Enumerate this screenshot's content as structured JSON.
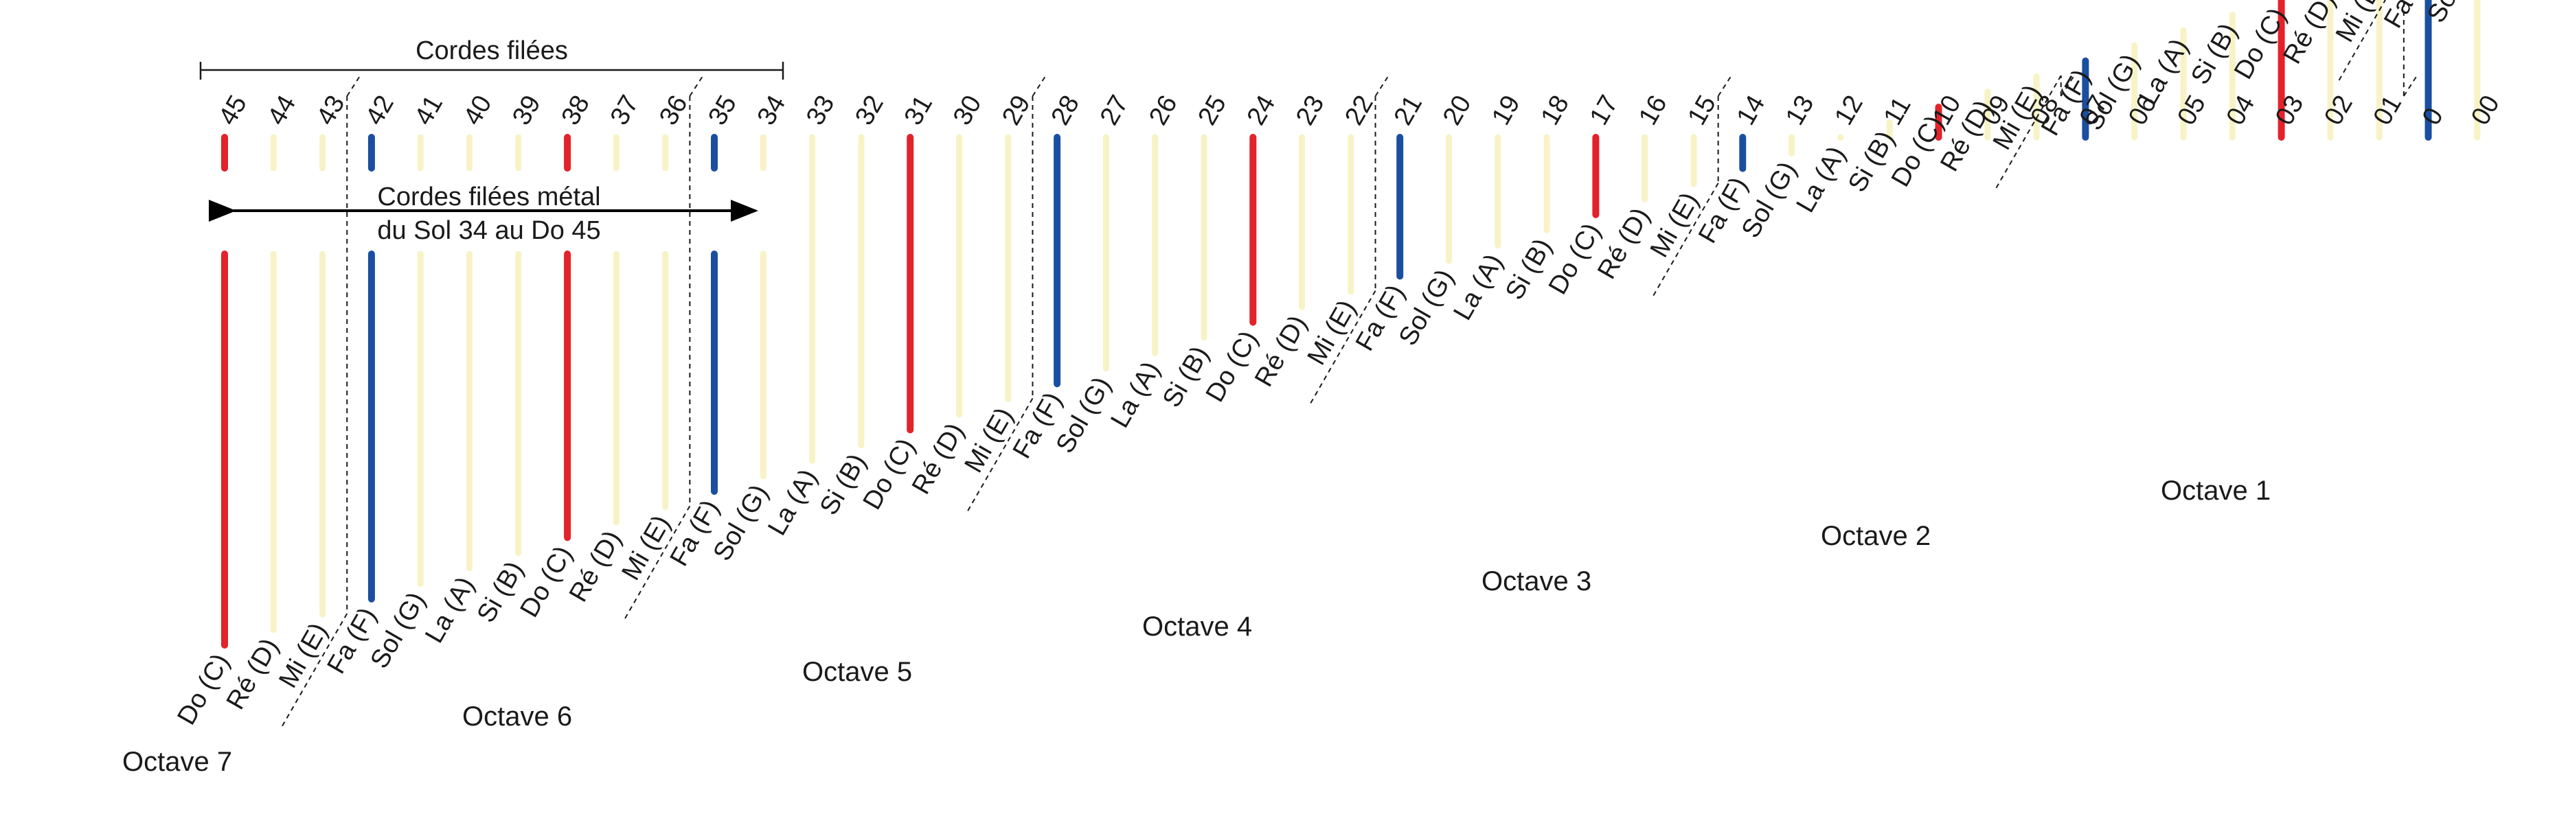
{
  "header": {
    "bracket_label": "Cordes filées"
  },
  "arrow": {
    "line1": "Cordes filées métal",
    "line2": "du Sol 34 au Do 45"
  },
  "colors": {
    "do": "#e3222b",
    "fa": "#1a4fa0",
    "other": "#f7f3c6",
    "ink": "#1a1a1a"
  },
  "strings": [
    {
      "number": "45",
      "note": "Do (C)",
      "kind": "do"
    },
    {
      "number": "44",
      "note": "Ré (D)",
      "kind": "other"
    },
    {
      "number": "43",
      "note": "Mi (E)",
      "kind": "other"
    },
    {
      "number": "42",
      "note": "Fa (F)",
      "kind": "fa"
    },
    {
      "number": "41",
      "note": "Sol (G)",
      "kind": "other"
    },
    {
      "number": "40",
      "note": "La (A)",
      "kind": "other"
    },
    {
      "number": "39",
      "note": "Si (B)",
      "kind": "other"
    },
    {
      "number": "38",
      "note": "Do (C)",
      "kind": "do"
    },
    {
      "number": "37",
      "note": "Ré (D)",
      "kind": "other"
    },
    {
      "number": "36",
      "note": "Mi (E)",
      "kind": "other"
    },
    {
      "number": "35",
      "note": "Fa (F)",
      "kind": "fa"
    },
    {
      "number": "34",
      "note": "Sol (G)",
      "kind": "other"
    },
    {
      "number": "33",
      "note": "La (A)",
      "kind": "other"
    },
    {
      "number": "32",
      "note": "Si (B)",
      "kind": "other"
    },
    {
      "number": "31",
      "note": "Do (C)",
      "kind": "do"
    },
    {
      "number": "30",
      "note": "Ré (D)",
      "kind": "other"
    },
    {
      "number": "29",
      "note": "Mi (E)",
      "kind": "other"
    },
    {
      "number": "28",
      "note": "Fa (F)",
      "kind": "fa"
    },
    {
      "number": "27",
      "note": "Sol (G)",
      "kind": "other"
    },
    {
      "number": "26",
      "note": "La (A)",
      "kind": "other"
    },
    {
      "number": "25",
      "note": "Si (B)",
      "kind": "other"
    },
    {
      "number": "24",
      "note": "Do (C)",
      "kind": "do"
    },
    {
      "number": "23",
      "note": "Ré (D)",
      "kind": "other"
    },
    {
      "number": "22",
      "note": "Mi (E)",
      "kind": "other"
    },
    {
      "number": "21",
      "note": "Fa (F)",
      "kind": "fa"
    },
    {
      "number": "20",
      "note": "Sol (G)",
      "kind": "other"
    },
    {
      "number": "19",
      "note": "La (A)",
      "kind": "other"
    },
    {
      "number": "18",
      "note": "Si (B)",
      "kind": "other"
    },
    {
      "number": "17",
      "note": "Do (C)",
      "kind": "do"
    },
    {
      "number": "16",
      "note": "Ré (D)",
      "kind": "other"
    },
    {
      "number": "15",
      "note": "Mi (E)",
      "kind": "other"
    },
    {
      "number": "14",
      "note": "Fa (F)",
      "kind": "fa"
    },
    {
      "number": "13",
      "note": "Sol (G)",
      "kind": "other"
    },
    {
      "number": "12",
      "note": "La (A)",
      "kind": "other"
    },
    {
      "number": "11",
      "note": "Si (B)",
      "kind": "other"
    },
    {
      "number": "10",
      "note": "Do (C)",
      "kind": "do"
    },
    {
      "number": "09",
      "note": "Ré (D)",
      "kind": "other"
    },
    {
      "number": "08",
      "note": "Mi (E)",
      "kind": "other"
    },
    {
      "number": "07",
      "note": "Fa (F)",
      "kind": "fa"
    },
    {
      "number": "06",
      "note": "Sol (G)",
      "kind": "other"
    },
    {
      "number": "05",
      "note": "La (A)",
      "kind": "other"
    },
    {
      "number": "04",
      "note": "Si (B)",
      "kind": "other"
    },
    {
      "number": "03",
      "note": "Do (C)",
      "kind": "do"
    },
    {
      "number": "02",
      "note": "Ré (D)",
      "kind": "other"
    },
    {
      "number": "01",
      "note": "Mi (E)",
      "kind": "other"
    },
    {
      "number": "0",
      "note": "Fa (F)",
      "kind": "fa"
    },
    {
      "number": "00",
      "note": "Sol (G)",
      "kind": "other"
    }
  ],
  "octaves": [
    "Octave 7",
    "Octave 6",
    "Octave 5",
    "Octave 4",
    "Octave 3",
    "Octave 2",
    "Octave 1"
  ]
}
